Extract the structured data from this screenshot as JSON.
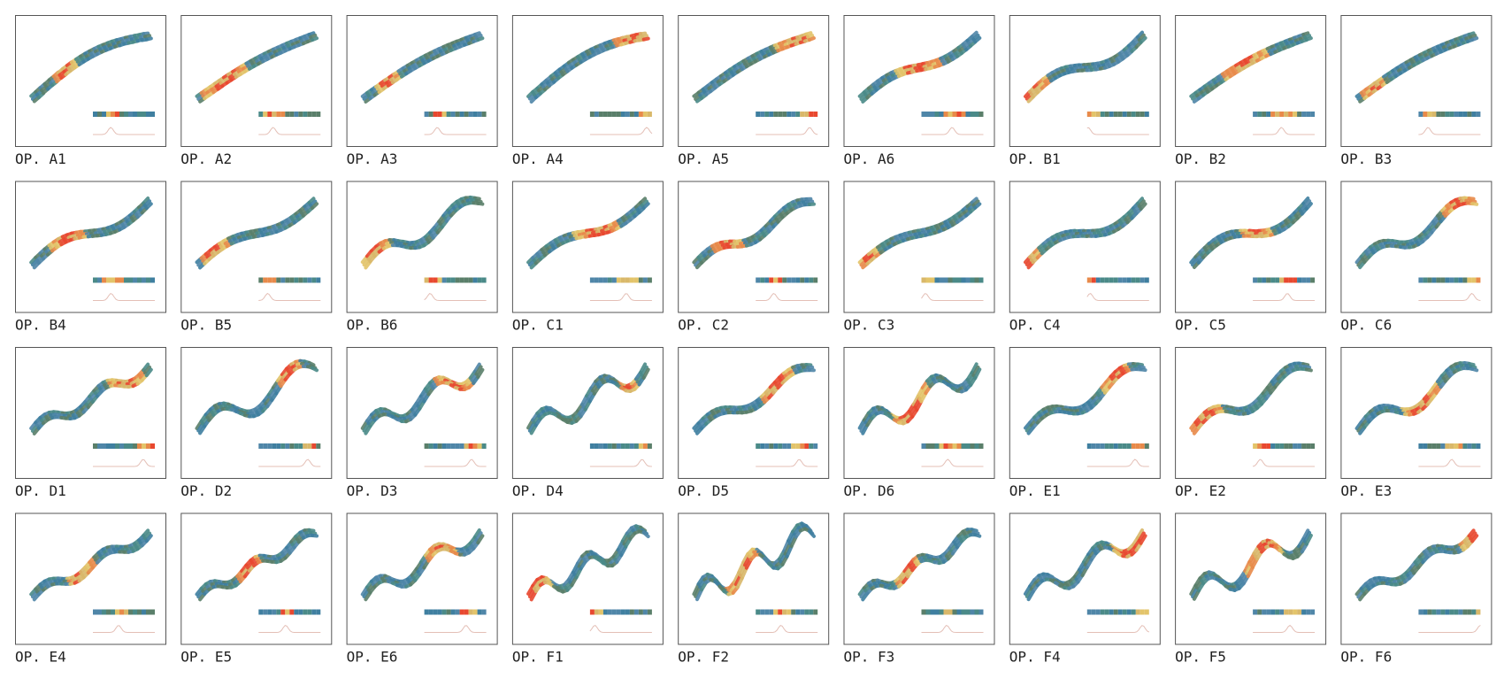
{
  "panels": [
    "OP. A1",
    "OP. A2",
    "OP. A3",
    "OP. A4",
    "OP. A5",
    "OP. A6",
    "OP. B1",
    "OP. B2",
    "OP. B3",
    "OP. B4",
    "OP. B5",
    "OP. B6",
    "OP. C1",
    "OP. C2",
    "OP. C3",
    "OP. C4",
    "OP. C5",
    "OP. C6",
    "OP. D1",
    "OP. D2",
    "OP. D3",
    "OP. D4",
    "OP. D5",
    "OP. D6",
    "OP. E1",
    "OP. E2",
    "OP. E3",
    "OP. E4",
    "OP. E5",
    "OP. E6",
    "OP. F1",
    "OP. F2",
    "OP. F3",
    "OP. F4",
    "OP. F5",
    "OP. F6"
  ]
}
